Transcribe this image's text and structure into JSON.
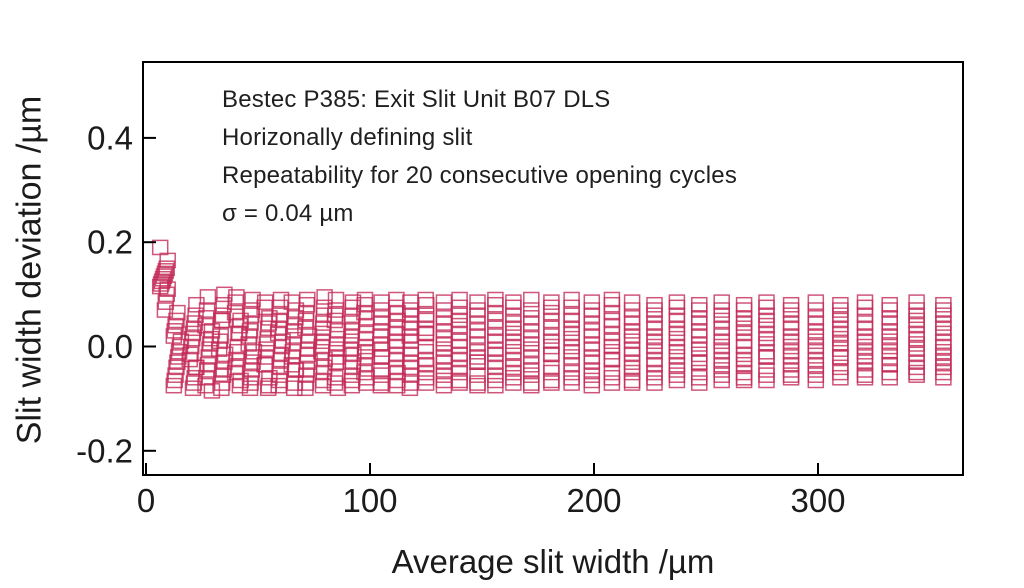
{
  "chart_data": {
    "type": "scatter",
    "marker_shape": "open-square",
    "marker_width_um": 6.7,
    "marker_height_um": 0.027,
    "annotation": [
      "Bestec P385: Exit Slit Unit B07 DLS",
      "Horizonally defining slit",
      "Repeatability for 20 consecutive opening cycles",
      "σ = 0.04 µm"
    ],
    "xlabel": "Average slit width /µm",
    "ylabel": "Slit width deviation /µm",
    "xlim": [
      0,
      365
    ],
    "ylim": [
      -0.25,
      0.55
    ],
    "grid": false,
    "legend": "none",
    "axes": {
      "x_ticks": [
        {
          "value": 0,
          "label": "0"
        },
        {
          "value": 100,
          "label": "100"
        },
        {
          "value": 200,
          "label": "200"
        },
        {
          "value": 300,
          "label": "300"
        }
      ],
      "y_ticks": [
        {
          "value": 0.4,
          "label": "0.4"
        },
        {
          "value": 0.2,
          "label": "0.2"
        },
        {
          "value": 0.0,
          "label": "0.0"
        },
        {
          "value": -0.2,
          "label": "-0.2"
        }
      ]
    },
    "colors": {
      "marker": "#c32b58",
      "axis": "#000000",
      "text": "#1b1b1b"
    },
    "columns": [
      {
        "x": 8,
        "y": [
          0.19,
          0.165,
          0.15,
          0.145,
          0.14,
          0.135,
          0.13,
          0.125,
          0.12,
          0.115,
          0.11,
          0.1,
          0.085,
          0.07
        ]
      },
      {
        "x": 14,
        "y": [
          0.065,
          0.05,
          0.04,
          0.03,
          0.02,
          0.01,
          0.0,
          -0.01,
          -0.02,
          -0.03,
          -0.04,
          -0.055,
          -0.065,
          -0.075
        ]
      },
      {
        "x": 21,
        "y": [
          0.08,
          0.06,
          0.045,
          0.035,
          0.025,
          0.015,
          0.0,
          -0.015,
          -0.025,
          -0.04,
          -0.04,
          -0.06,
          -0.07,
          -0.08
        ]
      },
      {
        "x": 28,
        "y": [
          0.095,
          0.07,
          0.055,
          0.04,
          0.03,
          0.015,
          0.005,
          -0.005,
          -0.02,
          -0.035,
          -0.045,
          -0.06,
          -0.075,
          -0.085
        ]
      },
      {
        "x": 34,
        "y": [
          0.1,
          0.08,
          0.06,
          0.05,
          0.05,
          0.02,
          0.01,
          -0.005,
          -0.015,
          -0.03,
          -0.045,
          -0.055,
          -0.07,
          -0.08
        ]
      },
      {
        "x": 41,
        "y": [
          0.095,
          0.085,
          0.065,
          0.05,
          0.04,
          0.025,
          0.025,
          0.0,
          -0.01,
          -0.025,
          -0.04,
          -0.05,
          -0.065,
          -0.075
        ]
      },
      {
        "x": 47,
        "y": [
          0.09,
          0.07,
          0.06,
          0.045,
          0.03,
          0.02,
          0.005,
          -0.01,
          -0.02,
          -0.03,
          -0.045,
          -0.06,
          -0.07,
          -0.08
        ]
      },
      {
        "x": 54,
        "y": [
          0.085,
          0.075,
          0.055,
          0.045,
          0.035,
          0.015,
          0.005,
          -0.005,
          -0.02,
          -0.035,
          -0.035,
          -0.06,
          -0.075,
          -0.08
        ]
      },
      {
        "x": 60,
        "y": [
          0.09,
          0.075,
          0.06,
          0.05,
          0.035,
          0.025,
          0.01,
          0.0,
          -0.015,
          -0.025,
          -0.04,
          -0.055,
          -0.065,
          -0.075
        ]
      },
      {
        "x": 66,
        "y": [
          0.085,
          0.07,
          0.055,
          0.04,
          0.03,
          0.02,
          0.005,
          -0.01,
          -0.02,
          -0.035,
          -0.045,
          -0.045,
          -0.07,
          -0.08
        ]
      },
      {
        "x": 72,
        "y": [
          0.09,
          0.08,
          0.065,
          0.05,
          0.035,
          0.02,
          0.01,
          -0.005,
          -0.015,
          -0.03,
          -0.045,
          -0.055,
          -0.07,
          -0.08
        ]
      },
      {
        "x": 79,
        "y": [
          0.095,
          0.075,
          0.06,
          0.045,
          0.035,
          0.025,
          0.01,
          0.0,
          -0.01,
          -0.025,
          -0.04,
          -0.05,
          -0.065,
          -0.075
        ]
      },
      {
        "x": 85,
        "y": [
          0.09,
          0.07,
          0.06,
          0.05,
          0.03,
          0.015,
          0.005,
          -0.005,
          -0.02,
          -0.03,
          -0.03,
          -0.06,
          -0.07,
          -0.08
        ]
      },
      {
        "x": 92,
        "y": [
          0.085,
          0.075,
          0.06,
          0.045,
          0.03,
          0.02,
          0.01,
          -0.005,
          -0.015,
          -0.03,
          -0.04,
          -0.055,
          -0.065,
          -0.075
        ]
      },
      {
        "x": 98,
        "y": [
          0.09,
          0.08,
          0.065,
          0.055,
          0.04,
          0.025,
          0.015,
          0.0,
          -0.01,
          -0.02,
          -0.035,
          -0.05,
          -0.06,
          -0.07
        ]
      },
      {
        "x": 105,
        "y": [
          0.085,
          0.07,
          0.055,
          0.045,
          0.03,
          0.02,
          0.005,
          -0.005,
          -0.02,
          -0.02,
          -0.045,
          -0.055,
          -0.07,
          -0.075
        ]
      },
      {
        "x": 112,
        "y": [
          0.09,
          0.075,
          0.065,
          0.05,
          0.035,
          0.025,
          0.01,
          0.0,
          -0.015,
          -0.025,
          -0.04,
          -0.05,
          -0.065,
          -0.075
        ]
      },
      {
        "x": 118,
        "y": [
          0.085,
          0.07,
          0.06,
          0.045,
          0.035,
          0.02,
          0.01,
          -0.005,
          -0.015,
          -0.03,
          -0.04,
          -0.055,
          -0.07,
          -0.08
        ]
      },
      {
        "x": 125,
        "y": [
          0.09,
          0.08,
          0.06,
          0.05,
          0.035,
          0.025,
          0.025,
          0.0,
          -0.01,
          -0.025,
          -0.035,
          -0.05,
          -0.06,
          -0.07
        ]
      },
      {
        "x": 133,
        "y": [
          0.085,
          0.07,
          0.055,
          0.045,
          0.03,
          0.015,
          0.005,
          -0.005,
          -0.02,
          -0.03,
          -0.045,
          -0.055,
          -0.065,
          -0.075
        ]
      },
      {
        "x": 140,
        "y": [
          0.09,
          0.075,
          0.06,
          0.05,
          0.04,
          0.025,
          0.01,
          0.0,
          -0.015,
          -0.025,
          -0.04,
          -0.05,
          -0.065,
          -0.07
        ]
      },
      {
        "x": 148,
        "y": [
          0.085,
          0.07,
          0.06,
          0.045,
          0.03,
          0.02,
          0.005,
          -0.01,
          -0.02,
          -0.03,
          -0.03,
          -0.055,
          -0.07,
          -0.075
        ]
      },
      {
        "x": 156,
        "y": [
          0.09,
          0.08,
          0.065,
          0.05,
          0.035,
          0.02,
          0.01,
          -0.005,
          -0.015,
          -0.03,
          -0.04,
          -0.055,
          -0.065,
          -0.075
        ]
      },
      {
        "x": 164,
        "y": [
          0.085,
          0.075,
          0.06,
          0.045,
          0.035,
          0.025,
          0.01,
          0.0,
          -0.01,
          -0.025,
          -0.04,
          -0.05,
          -0.06,
          -0.07
        ]
      },
      {
        "x": 172,
        "y": [
          0.09,
          0.07,
          0.055,
          0.045,
          0.03,
          0.015,
          0.005,
          -0.005,
          -0.02,
          -0.035,
          -0.045,
          -0.055,
          -0.07,
          -0.075
        ]
      },
      {
        "x": 181,
        "y": [
          0.085,
          0.075,
          0.065,
          0.05,
          0.035,
          0.02,
          0.01,
          0.0,
          -0.015,
          -0.015,
          -0.04,
          -0.05,
          -0.065,
          -0.07
        ]
      },
      {
        "x": 190,
        "y": [
          0.09,
          0.075,
          0.06,
          0.05,
          0.035,
          0.025,
          0.015,
          0.0,
          -0.01,
          -0.02,
          -0.035,
          -0.05,
          -0.06,
          -0.07
        ]
      },
      {
        "x": 199,
        "y": [
          0.085,
          0.07,
          0.06,
          0.045,
          0.03,
          0.02,
          0.005,
          -0.005,
          -0.02,
          -0.03,
          -0.045,
          -0.055,
          -0.065,
          -0.075
        ]
      },
      {
        "x": 208,
        "y": [
          0.09,
          0.08,
          0.065,
          0.05,
          0.04,
          0.025,
          0.01,
          0.0,
          -0.01,
          -0.025,
          -0.025,
          -0.05,
          -0.06,
          -0.07
        ]
      },
      {
        "x": 217,
        "y": [
          0.085,
          0.07,
          0.055,
          0.045,
          0.03,
          0.02,
          0.01,
          -0.005,
          -0.015,
          -0.03,
          -0.04,
          -0.05,
          -0.065,
          -0.07
        ]
      },
      {
        "x": 227,
        "y": [
          0.08,
          0.07,
          0.06,
          0.045,
          0.035,
          0.02,
          0.01,
          0.0,
          -0.01,
          -0.025,
          -0.035,
          -0.05,
          -0.06,
          -0.07
        ]
      },
      {
        "x": 237,
        "y": [
          0.085,
          0.075,
          0.06,
          0.05,
          0.035,
          0.025,
          0.015,
          0.0,
          -0.01,
          -0.02,
          -0.035,
          -0.045,
          -0.055,
          -0.065
        ]
      },
      {
        "x": 247,
        "y": [
          0.08,
          0.07,
          0.055,
          0.045,
          0.03,
          0.02,
          0.005,
          -0.005,
          -0.015,
          -0.03,
          -0.03,
          -0.05,
          -0.06,
          -0.07
        ]
      },
      {
        "x": 257,
        "y": [
          0.085,
          0.07,
          0.06,
          0.05,
          0.035,
          0.02,
          0.01,
          0.0,
          -0.01,
          -0.025,
          -0.035,
          -0.045,
          -0.055,
          -0.065
        ]
      },
      {
        "x": 267,
        "y": [
          0.08,
          0.07,
          0.055,
          0.045,
          0.035,
          0.025,
          0.01,
          0.0,
          -0.015,
          -0.025,
          -0.035,
          -0.05,
          -0.06,
          -0.065
        ]
      },
      {
        "x": 277,
        "y": [
          0.085,
          0.075,
          0.06,
          0.05,
          0.04,
          0.025,
          0.015,
          0.005,
          -0.01,
          -0.02,
          -0.02,
          -0.045,
          -0.055,
          -0.065
        ]
      },
      {
        "x": 288,
        "y": [
          0.08,
          0.07,
          0.06,
          0.045,
          0.035,
          0.02,
          0.01,
          0.0,
          -0.01,
          -0.02,
          -0.035,
          -0.045,
          -0.055,
          -0.06
        ]
      },
      {
        "x": 299,
        "y": [
          0.085,
          0.07,
          0.055,
          0.045,
          0.03,
          0.02,
          0.01,
          0.0,
          -0.01,
          -0.025,
          -0.035,
          -0.045,
          -0.055,
          -0.065
        ]
      },
      {
        "x": 310,
        "y": [
          0.08,
          0.07,
          0.06,
          0.05,
          0.035,
          0.025,
          0.015,
          0.005,
          -0.005,
          -0.02,
          -0.02,
          -0.04,
          -0.05,
          -0.06
        ]
      },
      {
        "x": 321,
        "y": [
          0.085,
          0.075,
          0.06,
          0.045,
          0.035,
          0.02,
          0.01,
          0.0,
          -0.01,
          -0.02,
          -0.03,
          -0.045,
          -0.055,
          -0.06
        ]
      },
      {
        "x": 332,
        "y": [
          0.08,
          0.07,
          0.055,
          0.045,
          0.03,
          0.02,
          0.01,
          0.0,
          -0.01,
          -0.02,
          -0.035,
          -0.035,
          -0.05,
          -0.06
        ]
      },
      {
        "x": 344,
        "y": [
          0.085,
          0.07,
          0.06,
          0.05,
          0.04,
          0.025,
          0.015,
          0.005,
          -0.005,
          -0.015,
          -0.03,
          -0.04,
          -0.05,
          -0.055
        ]
      },
      {
        "x": 356,
        "y": [
          0.08,
          0.07,
          0.06,
          0.045,
          0.035,
          0.025,
          0.01,
          0.0,
          -0.01,
          -0.02,
          -0.03,
          -0.04,
          -0.05,
          -0.06
        ]
      }
    ]
  }
}
